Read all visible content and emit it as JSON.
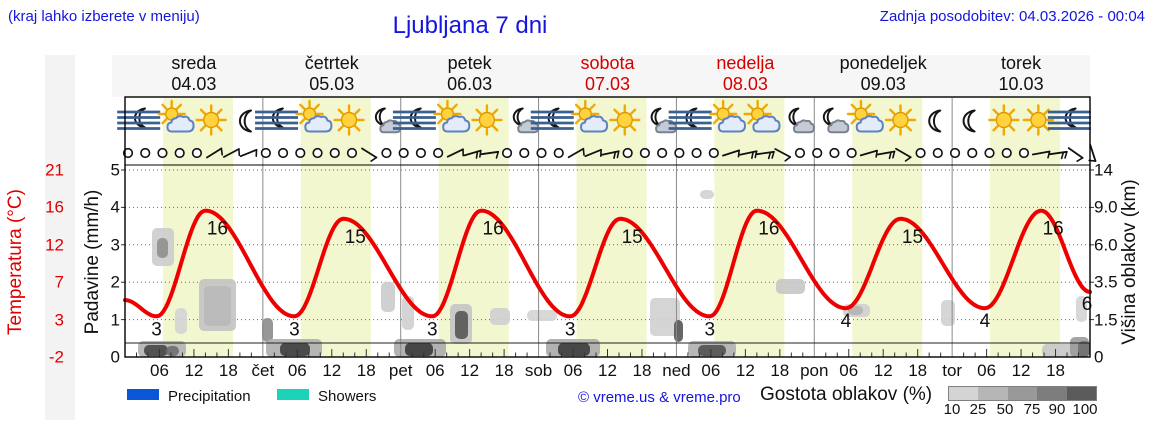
{
  "header": {
    "hint": "(kraj lahko izberete v meniju)",
    "title": "Ljubljana 7 dni",
    "updated": "Zadnja posodobitev: 04.03.2026 - 00:04"
  },
  "axes": {
    "temp_label": "Temperatura (°C)",
    "temp_ticks": [
      "21",
      "16",
      "12",
      "7",
      "3",
      "-2"
    ],
    "precip_label": "Padavine (mm/h)",
    "precip_ticks": [
      "5",
      "4",
      "3",
      "2",
      "1",
      "0"
    ],
    "cloud_label": "Višina oblakov (km)",
    "cloud_ticks": [
      "14",
      "9.0",
      "6.0",
      "3.5",
      "1.5",
      "0"
    ]
  },
  "days": [
    {
      "name": "sreda",
      "date": "04.03",
      "weekend": false
    },
    {
      "name": "četrtek",
      "date": "05.03",
      "weekend": false
    },
    {
      "name": "petek",
      "date": "06.03",
      "weekend": false
    },
    {
      "name": "sobota",
      "date": "07.03",
      "weekend": true
    },
    {
      "name": "nedelja",
      "date": "08.03",
      "weekend": true
    },
    {
      "name": "ponedeljek",
      "date": "09.03",
      "weekend": false
    },
    {
      "name": "torek",
      "date": "10.03",
      "weekend": false
    }
  ],
  "xticks": [
    {
      "h": 6,
      "label": "06"
    },
    {
      "h": 12,
      "label": "12"
    },
    {
      "h": 18,
      "label": "18"
    },
    {
      "h": 24,
      "label": "čet"
    },
    {
      "h": 30,
      "label": "06"
    },
    {
      "h": 36,
      "label": "12"
    },
    {
      "h": 42,
      "label": "18"
    },
    {
      "h": 48,
      "label": "pet"
    },
    {
      "h": 54,
      "label": "06"
    },
    {
      "h": 60,
      "label": "12"
    },
    {
      "h": 66,
      "label": "18"
    },
    {
      "h": 72,
      "label": "sob"
    },
    {
      "h": 78,
      "label": "06"
    },
    {
      "h": 84,
      "label": "12"
    },
    {
      "h": 90,
      "label": "18"
    },
    {
      "h": 96,
      "label": "ned"
    },
    {
      "h": 102,
      "label": "06"
    },
    {
      "h": 108,
      "label": "12"
    },
    {
      "h": 114,
      "label": "18"
    },
    {
      "h": 120,
      "label": "pon"
    },
    {
      "h": 126,
      "label": "06"
    },
    {
      "h": 132,
      "label": "12"
    },
    {
      "h": 138,
      "label": "18"
    },
    {
      "h": 144,
      "label": "tor"
    },
    {
      "h": 150,
      "label": "06"
    },
    {
      "h": 156,
      "label": "12"
    },
    {
      "h": 162,
      "label": "18"
    }
  ],
  "legend": {
    "precipitation": "Precipitation",
    "showers": "Showers",
    "precip_color": "#0a56d8",
    "showers_color": "#1cd3b8",
    "copyright": "© vreme.us & vreme.pro",
    "cloud_density_label": "Gostota oblakov (%)",
    "scale_values": [
      "10",
      "25",
      "50",
      "75",
      "90",
      "100"
    ],
    "scale_colors": [
      "#d4d4d4",
      "#b6b6b6",
      "#999999",
      "#7d7d7d",
      "#5b5b5b"
    ]
  },
  "colors": {
    "curve": "#ee0000",
    "day_band": "#f3f7d0",
    "blue_text": "#1515dd",
    "red_axis": "#e00000",
    "weekend_red": "#d40000"
  },
  "chart_data": {
    "type": "line",
    "title": "Ljubljana 7 dni",
    "x_hours_total": 168,
    "temp_axis": {
      "min": -2,
      "max": 21,
      "ticks": [
        21,
        16,
        12,
        7,
        3,
        -2
      ]
    },
    "precip_axis_mmh": {
      "min": 0,
      "max": 5,
      "ticks": [
        5,
        4,
        3,
        2,
        1,
        0
      ]
    },
    "cloud_axis_km": [
      0,
      1.5,
      3.5,
      6.0,
      9.0,
      14
    ],
    "day_band_hours": [
      6.6,
      18.8
    ],
    "temperature_series": {
      "name": "Temperatura",
      "points": [
        [
          0,
          5
        ],
        [
          5.5,
          3
        ],
        [
          14,
          16
        ],
        [
          29.5,
          3
        ],
        [
          38,
          15
        ],
        [
          53.5,
          3
        ],
        [
          62,
          16
        ],
        [
          77.5,
          3
        ],
        [
          86.2,
          15
        ],
        [
          101.8,
          3
        ],
        [
          110,
          16
        ],
        [
          125.5,
          4
        ],
        [
          135,
          15
        ],
        [
          149.7,
          4
        ],
        [
          159.5,
          16
        ],
        [
          168,
          6
        ]
      ]
    },
    "point_labels": [
      {
        "hour": 14,
        "temp": 16,
        "kind": "peak",
        "label": "16"
      },
      {
        "hour": 38,
        "temp": 15,
        "kind": "peak",
        "label": "15"
      },
      {
        "hour": 62,
        "temp": 16,
        "kind": "peak",
        "label": "16"
      },
      {
        "hour": 86.2,
        "temp": 15,
        "kind": "peak",
        "label": "15"
      },
      {
        "hour": 110,
        "temp": 16,
        "kind": "peak",
        "label": "16"
      },
      {
        "hour": 135,
        "temp": 15,
        "kind": "peak",
        "label": "15"
      },
      {
        "hour": 159.5,
        "temp": 16,
        "kind": "peak",
        "label": "16"
      },
      {
        "hour": 5.5,
        "temp": 3,
        "kind": "min",
        "label": "3"
      },
      {
        "hour": 29.5,
        "temp": 3,
        "kind": "min",
        "label": "3"
      },
      {
        "hour": 53.5,
        "temp": 3,
        "kind": "min",
        "label": "3"
      },
      {
        "hour": 77.5,
        "temp": 3,
        "kind": "min",
        "label": "3"
      },
      {
        "hour": 101.8,
        "temp": 3,
        "kind": "min",
        "label": "3"
      },
      {
        "hour": 125.5,
        "temp": 4,
        "kind": "min",
        "label": "4"
      },
      {
        "hour": 149.7,
        "temp": 4,
        "kind": "min",
        "label": "4"
      },
      {
        "hour": 168,
        "temp": 6,
        "kind": "end",
        "label": "6"
      }
    ],
    "weather_icons": [
      [
        "fog-moon",
        "sun-cloud",
        "sun",
        "moon"
      ],
      [
        "fog-moon",
        "sun-cloud",
        "sun",
        "moon-cloud"
      ],
      [
        "fog-moon",
        "sun-cloud",
        "sun",
        "moon-cloud"
      ],
      [
        "fog-moon",
        "sun-cloud",
        "sun",
        "moon-cloud"
      ],
      [
        "fog-moon",
        "sun-cloud",
        "sun-cloud",
        "moon-cloud"
      ],
      [
        "moon-cloud",
        "sun-cloud",
        "sun",
        "moon"
      ],
      [
        "moon",
        "sun",
        "sun",
        "fog-moon"
      ]
    ],
    "wind_symbols": [
      "c",
      "c",
      "c",
      "c",
      "c",
      "b:-32:1",
      "b:-28:1",
      "b:-22:1",
      "c",
      "c",
      "c",
      "c",
      "c",
      "c",
      "b:32:1",
      "c",
      "c",
      "c",
      "c",
      "b:-26:1",
      "b:-16:2",
      "b:-8:1",
      "c",
      "c",
      "c",
      "c",
      "b:-30:1",
      "b:-22:1",
      "b:-12:2",
      "c",
      "c",
      "c",
      "c",
      "c",
      "c",
      "b:-18:1",
      "b:-12:2",
      "b:-8:2",
      "b:28:1",
      "c",
      "c",
      "c",
      "c",
      "b:-16:1",
      "b:-10:2",
      "b:30:1",
      "c",
      "c",
      "c",
      "c",
      "c",
      "c",
      "c",
      "b:-10:1",
      "b:-8:2",
      "b:35:1",
      "b:72:1"
    ],
    "cloud_blobs": [
      [
        152,
        228,
        22,
        38,
        "#cccccc"
      ],
      [
        157,
        238,
        11,
        20,
        "#8f8f8f"
      ],
      [
        175,
        308,
        12,
        26,
        "#d4d4d4"
      ],
      [
        199,
        279,
        37,
        52,
        "#c3c3c3"
      ],
      [
        204,
        286,
        27,
        40,
        "#b9b9b9"
      ],
      [
        138,
        341,
        48,
        16,
        "#b3b3b3"
      ],
      [
        144,
        345,
        24,
        11,
        "#474747"
      ],
      [
        166,
        346,
        13,
        10,
        "#6e6e6e"
      ],
      [
        262,
        318,
        11,
        24,
        "#8c8c8c"
      ],
      [
        266,
        339,
        56,
        18,
        "#aeaeae"
      ],
      [
        280,
        343,
        30,
        13,
        "#3f3f3f"
      ],
      [
        381,
        282,
        14,
        30,
        "#cbcbcb"
      ],
      [
        402,
        296,
        12,
        34,
        "#cfcfcf"
      ],
      [
        394,
        339,
        52,
        18,
        "#ababab"
      ],
      [
        405,
        343,
        28,
        13,
        "#3a3a3a"
      ],
      [
        450,
        304,
        22,
        40,
        "#c4c4c4"
      ],
      [
        455,
        311,
        13,
        28,
        "#565656"
      ],
      [
        490,
        308,
        20,
        17,
        "#cfcfcf"
      ],
      [
        527,
        310,
        30,
        11,
        "#d4d4d4"
      ],
      [
        546,
        339,
        54,
        18,
        "#aaaaaa"
      ],
      [
        558,
        343,
        32,
        13,
        "#3c3c3c"
      ],
      [
        650,
        298,
        30,
        38,
        "#d0d0d0"
      ],
      [
        674,
        320,
        9,
        22,
        "#575757"
      ],
      [
        700,
        190,
        14,
        9,
        "#d2d2d2"
      ],
      [
        688,
        341,
        48,
        16,
        "#b0b0b0"
      ],
      [
        698,
        345,
        28,
        11,
        "#525252"
      ],
      [
        776,
        279,
        29,
        15,
        "#c7c7c7"
      ],
      [
        843,
        304,
        27,
        13,
        "#cfcfcf"
      ],
      [
        848,
        306,
        15,
        9,
        "#b2b2b2"
      ],
      [
        941,
        300,
        14,
        26,
        "#d2d2d2"
      ],
      [
        1042,
        344,
        48,
        13,
        "#c6c6c6"
      ],
      [
        1070,
        337,
        19,
        20,
        "#9b9b9b"
      ],
      [
        1076,
        296,
        11,
        26,
        "#d4d4d4"
      ],
      [
        1078,
        341,
        12,
        16,
        "#6f6f6f"
      ]
    ]
  }
}
